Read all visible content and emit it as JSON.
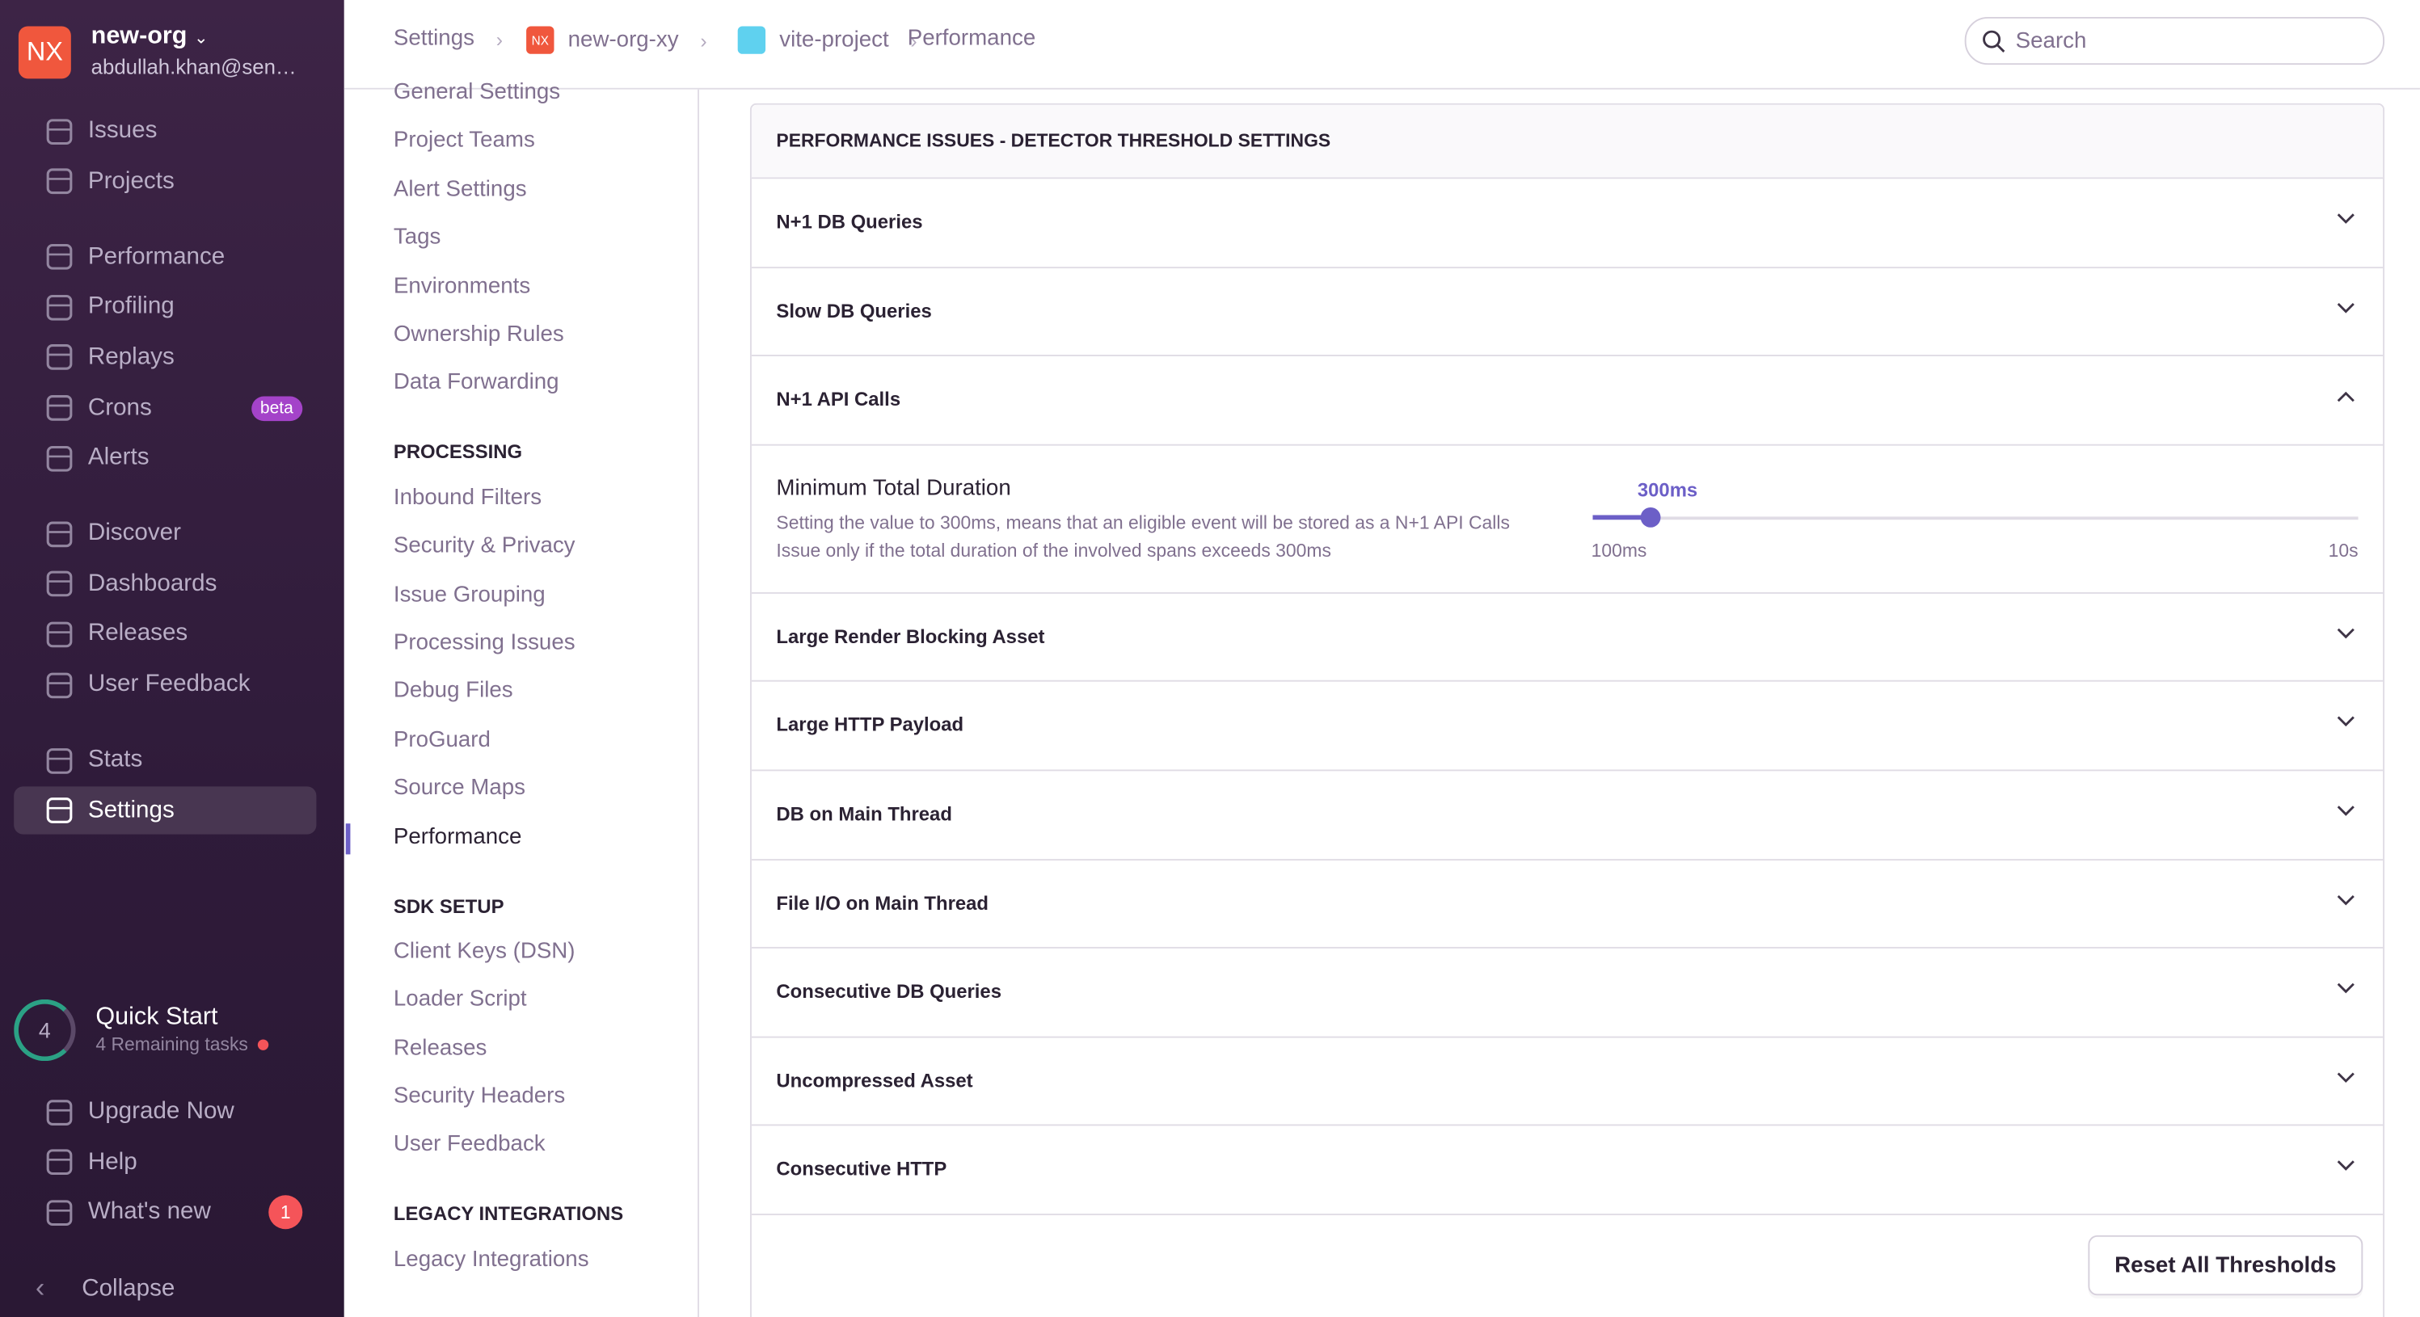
{
  "org": {
    "initials": "NX",
    "name": "new-org",
    "email": "abdullah.khan@sen…"
  },
  "nav_groups": [
    [
      {
        "label": "Issues"
      },
      {
        "label": "Projects"
      }
    ],
    [
      {
        "label": "Performance"
      },
      {
        "label": "Profiling"
      },
      {
        "label": "Replays"
      },
      {
        "label": "Crons",
        "badge": "beta"
      },
      {
        "label": "Alerts"
      }
    ],
    [
      {
        "label": "Discover"
      },
      {
        "label": "Dashboards"
      },
      {
        "label": "Releases"
      },
      {
        "label": "User Feedback"
      }
    ],
    [
      {
        "label": "Stats"
      },
      {
        "label": "Settings",
        "active": true
      }
    ]
  ],
  "quick_start": {
    "count": "4",
    "title": "Quick Start",
    "subtitle": "4 Remaining tasks"
  },
  "footer_nav": [
    {
      "label": "Upgrade Now"
    },
    {
      "label": "Help"
    },
    {
      "label": "What's new",
      "badge": "1"
    }
  ],
  "collapse": "Collapse",
  "breadcrumbs": [
    {
      "label": "Settings"
    },
    {
      "label": "new-org-xy",
      "icon": "NX"
    },
    {
      "label": "vite-project"
    },
    {
      "label": "Performance"
    }
  ],
  "search_placeholder": "Search",
  "settings_nav": [
    {
      "items": [
        "General Settings",
        "Project Teams",
        "Alert Settings",
        "Tags",
        "Environments",
        "Ownership Rules",
        "Data Forwarding"
      ]
    },
    {
      "heading": "PROCESSING",
      "items": [
        "Inbound Filters",
        "Security & Privacy",
        "Issue Grouping",
        "Processing Issues",
        "Debug Files",
        "ProGuard",
        "Source Maps",
        "Performance"
      ]
    },
    {
      "heading": "SDK SETUP",
      "items": [
        "Client Keys (DSN)",
        "Loader Script",
        "Releases",
        "Security Headers",
        "User Feedback"
      ]
    },
    {
      "heading": "LEGACY INTEGRATIONS",
      "items": [
        "Legacy Integrations"
      ]
    }
  ],
  "settings_active": "Performance",
  "panel": {
    "title": "PERFORMANCE ISSUES - DETECTOR THRESHOLD SETTINGS",
    "rows": [
      {
        "title": "N+1 DB Queries"
      },
      {
        "title": "Slow DB Queries"
      },
      {
        "title": "N+1 API Calls",
        "expanded": true,
        "detail": {
          "label": "Minimum Total Duration",
          "description": "Setting the value to 300ms, means that an eligible event will be stored as a N+1 API Calls Issue only if the total duration of the involved spans exceeds 300ms",
          "value_label": "300ms",
          "min_label": "100ms",
          "max_label": "10s"
        }
      },
      {
        "title": "Large Render Blocking Asset"
      },
      {
        "title": "Large HTTP Payload"
      },
      {
        "title": "DB on Main Thread"
      },
      {
        "title": "File I/O on Main Thread"
      },
      {
        "title": "Consecutive DB Queries"
      },
      {
        "title": "Uncompressed Asset"
      },
      {
        "title": "Consecutive HTTP"
      }
    ],
    "reset_button": "Reset All Thresholds"
  }
}
